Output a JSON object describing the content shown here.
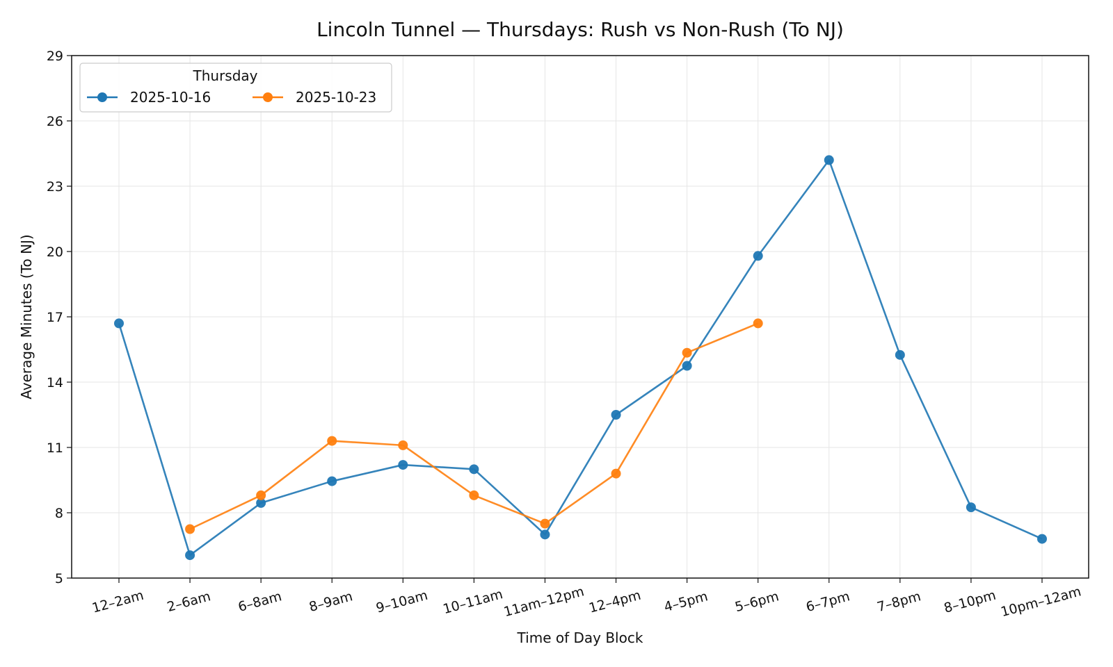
{
  "chart_data": {
    "type": "line",
    "title": "Lincoln Tunnel — Thursdays: Rush vs Non-Rush (To NJ)",
    "xlabel": "Time of Day Block",
    "ylabel": "Average Minutes (To NJ)",
    "categories": [
      "12–2am",
      "2–6am",
      "6–8am",
      "8–9am",
      "9–10am",
      "10–11am",
      "11am–12pm",
      "12–4pm",
      "4–5pm",
      "5–6pm",
      "6–7pm",
      "7–8pm",
      "8–10pm",
      "10pm–12am"
    ],
    "yticks": [
      5,
      8,
      11,
      14,
      17,
      20,
      23,
      26,
      29
    ],
    "ylim": [
      5,
      29
    ],
    "grid": true,
    "legend": {
      "title": "Thursday",
      "placement": "top-left"
    },
    "series": [
      {
        "name": "2025-10-16",
        "color": "#1f77b4",
        "values": [
          16.7,
          6.05,
          8.45,
          9.45,
          10.2,
          10.0,
          7.0,
          12.5,
          14.75,
          19.8,
          24.2,
          15.25,
          8.25,
          6.8
        ]
      },
      {
        "name": "2025-10-23",
        "color": "#ff7f0e",
        "values": [
          null,
          7.25,
          8.8,
          11.3,
          11.1,
          8.8,
          7.5,
          9.8,
          15.35,
          16.7,
          null,
          null,
          null,
          null
        ]
      }
    ]
  }
}
